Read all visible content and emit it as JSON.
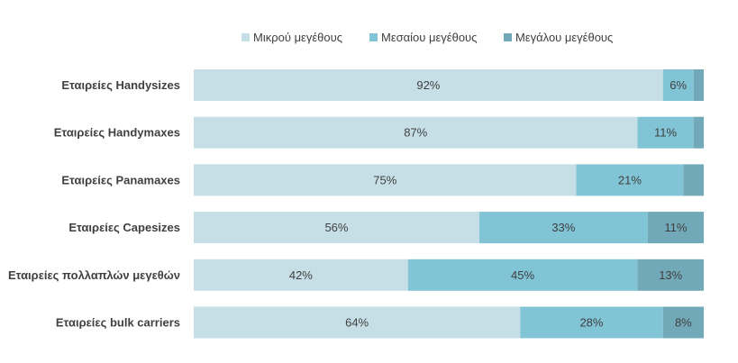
{
  "chart_data": {
    "type": "bar",
    "orientation": "horizontal",
    "stacked": "percent",
    "categories": [
      "Εταιρείες Handysizes",
      "Εταιρείες Handymaxes",
      "Εταιρείες Panamaxes",
      "Εταιρείες Capesizes",
      "Εταιρείες πολλαπλών μεγεθών",
      "Εταιρείες bulk carriers"
    ],
    "series": [
      {
        "name": "Μικρού μεγέθους",
        "color": "#c6dfe7",
        "values": [
          92,
          87,
          75,
          56,
          42,
          64
        ],
        "labels": [
          "92%",
          "87%",
          "75%",
          "56%",
          "42%",
          "64%"
        ]
      },
      {
        "name": "Μεσαίου μεγέθους",
        "color": "#80c4d6",
        "values": [
          6,
          11,
          21,
          33,
          45,
          28
        ],
        "labels": [
          "6%",
          "11%",
          "21%",
          "33%",
          "45%",
          "28%"
        ]
      },
      {
        "name": "Μεγάλου μεγέθους",
        "color": "#72a9b8",
        "values": [
          2,
          2,
          4,
          11,
          13,
          8
        ],
        "labels": [
          "",
          "",
          "",
          "11%",
          "13%",
          "8%"
        ]
      }
    ],
    "xlim": [
      0,
      100
    ],
    "grid": false,
    "legend_position": "top"
  }
}
